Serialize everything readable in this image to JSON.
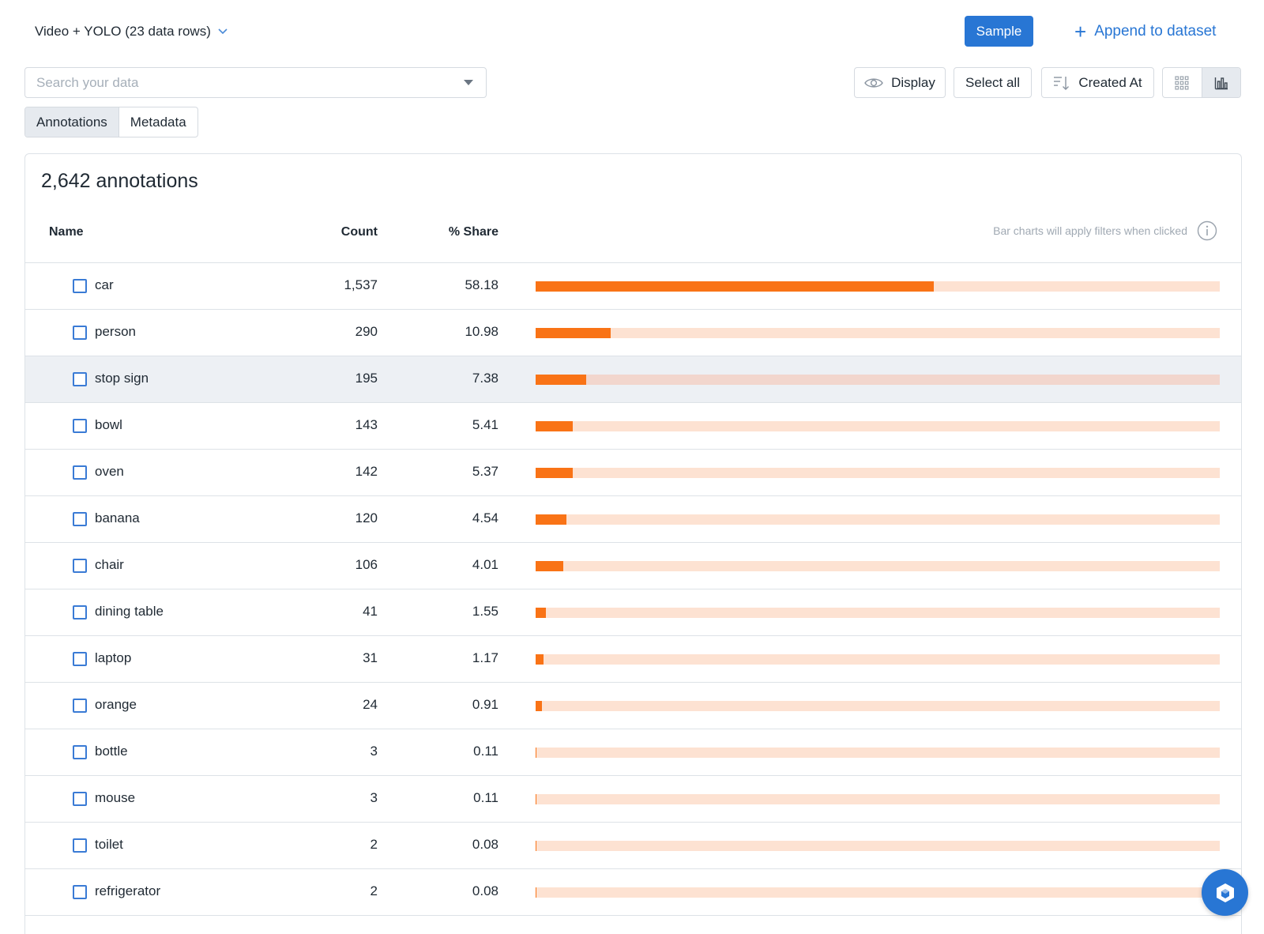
{
  "header": {
    "dataset_label": "Video + YOLO (23 data rows)",
    "sample_label": "Sample",
    "append_label": "Append to dataset"
  },
  "search": {
    "placeholder": "Search your data"
  },
  "toolbar": {
    "display_label": "Display",
    "select_all_label": "Select all",
    "sort_label": "Created At",
    "views": [
      "grid-view-icon",
      "chart-view-icon"
    ],
    "active_view": "chart-view-icon"
  },
  "tabs": [
    {
      "label": "Annotations",
      "active": true
    },
    {
      "label": "Metadata",
      "active": false
    }
  ],
  "card": {
    "title": "2,642 annotations",
    "columns": {
      "name": "Name",
      "count": "Count",
      "share": "% Share"
    },
    "hint": "Bar charts will apply filters when clicked"
  },
  "colors": {
    "accent": "#2876d4",
    "bar": "#f97316",
    "bar_track": "#fde2d2"
  },
  "chart_data": {
    "type": "bar",
    "categories": [
      "car",
      "person",
      "stop sign",
      "bowl",
      "oven",
      "banana",
      "chair",
      "dining table",
      "laptop",
      "orange",
      "bottle",
      "mouse",
      "toilet",
      "refrigerator"
    ],
    "count": [
      "1,537",
      "290",
      "195",
      "143",
      "142",
      "120",
      "106",
      "41",
      "31",
      "24",
      "3",
      "3",
      "2",
      "2"
    ],
    "share": [
      "58.18",
      "10.98",
      "7.38",
      "5.41",
      "5.37",
      "4.54",
      "4.01",
      "1.55",
      "1.17",
      "0.91",
      "0.11",
      "0.11",
      "0.08",
      "0.08"
    ],
    "values": [
      58.18,
      10.98,
      7.38,
      5.41,
      5.37,
      4.54,
      4.01,
      1.55,
      1.17,
      0.91,
      0.11,
      0.11,
      0.08,
      0.08
    ],
    "ylim": [
      0,
      100
    ]
  }
}
